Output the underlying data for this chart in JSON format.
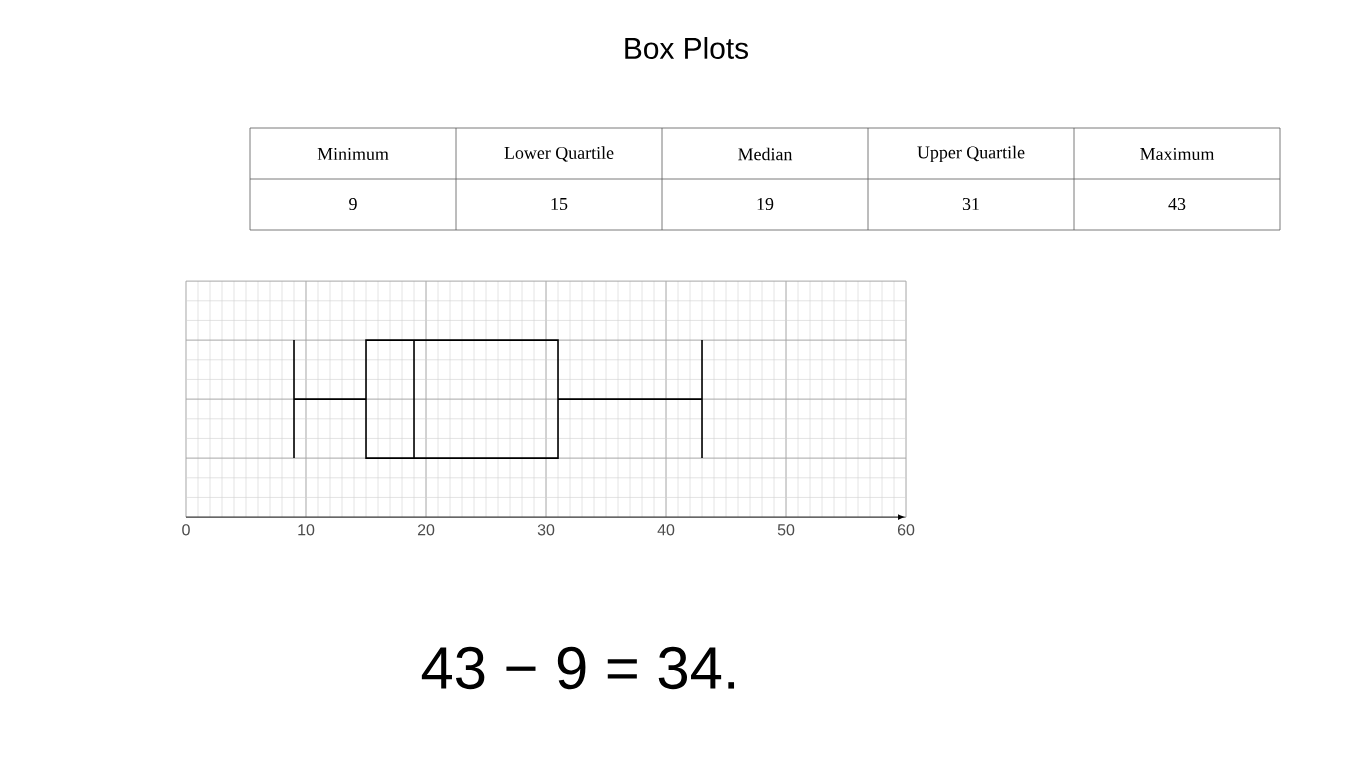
{
  "chart_data": {
    "type": "box",
    "title": "Box Plots",
    "categories": [
      null
    ],
    "boxes": [
      {
        "low": 9,
        "q1": 15,
        "median": 19,
        "q3": 31,
        "high": 43
      }
    ],
    "xlim": [
      0,
      60
    ],
    "xticks": [
      0,
      10,
      20,
      30,
      40,
      50,
      60
    ],
    "orientation": "horizontal",
    "grid": true,
    "annotations": [
      "Minimum",
      "Lower Quartile",
      "Median",
      "Upper Quartile",
      "Maximum",
      "9",
      "15",
      "19",
      "31",
      "43",
      "43 − 9 = 34."
    ]
  }
}
